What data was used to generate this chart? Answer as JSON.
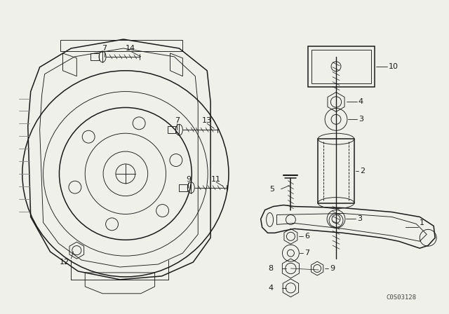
{
  "bg_color": "#f0f0eb",
  "line_color": "#1a1a1a",
  "catalog_number": "C0S03128",
  "lw_main": 1.1,
  "lw_thin": 0.65,
  "lw_bold": 1.5
}
